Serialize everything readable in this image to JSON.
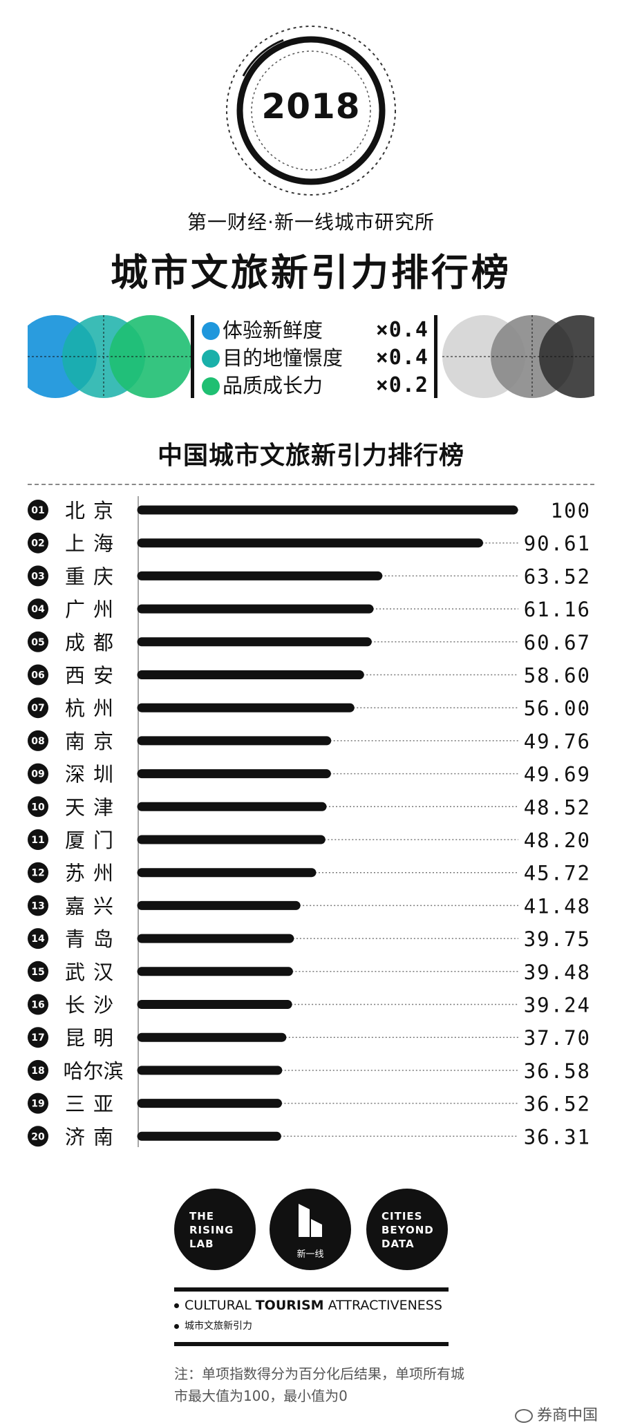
{
  "header": {
    "year": "2018",
    "subtitle": "第一财经·新一线城市研究所",
    "title": "城市文旅新引力排行榜"
  },
  "formula": {
    "items": [
      {
        "label": "体验新鲜度",
        "weight": "×0.4",
        "color": "#1f97dc"
      },
      {
        "label": "目的地憧憬度",
        "weight": "×0.4",
        "color": "#19b0a9"
      },
      {
        "label": "品质成长力",
        "weight": "×0.2",
        "color": "#1fbf72"
      }
    ]
  },
  "colors": {
    "ink": "#111111",
    "blue": "#1f97dc",
    "teal": "#19b0a9",
    "green": "#1fbf72"
  },
  "chart_data": {
    "type": "bar",
    "orientation": "horizontal",
    "title": "中国城市文旅新引力排行榜",
    "xlim": [
      0,
      100
    ],
    "grid": false,
    "ranks": [
      "01",
      "02",
      "03",
      "04",
      "05",
      "06",
      "07",
      "08",
      "09",
      "10",
      "11",
      "12",
      "13",
      "14",
      "15",
      "16",
      "17",
      "18",
      "19",
      "20"
    ],
    "categories": [
      "北京",
      "上海",
      "重庆",
      "广州",
      "成都",
      "西安",
      "杭州",
      "南京",
      "深圳",
      "天津",
      "厦门",
      "苏州",
      "嘉兴",
      "青岛",
      "武汉",
      "长沙",
      "昆明",
      "哈尔滨",
      "三亚",
      "济南"
    ],
    "values": [
      100,
      90.61,
      63.52,
      61.16,
      60.67,
      58.6,
      56.0,
      49.76,
      49.69,
      48.52,
      48.2,
      45.72,
      41.48,
      39.75,
      39.48,
      39.24,
      37.7,
      36.58,
      36.52,
      36.31
    ],
    "value_labels": [
      "100",
      "90.61",
      "63.52",
      "61.16",
      "60.67",
      "58.60",
      "56.00",
      "49.76",
      "49.69",
      "48.52",
      "48.20",
      "45.72",
      "41.48",
      "39.75",
      "39.48",
      "39.24",
      "37.70",
      "36.58",
      "36.52",
      "36.31"
    ]
  },
  "logos": {
    "rising_lab": "THE\nRISING\nLAB",
    "xinyixian": "新一线",
    "cities": "CITIES\nBEYOND\nDATA"
  },
  "tagline": {
    "en_pre": "CULTURAL ",
    "en_bold": "TOURISM",
    "en_post": " ATTRACTIVENESS",
    "cn": "城市文旅新引力"
  },
  "footnote": "注：单项指数得分为百分化后结果，单项所有城市最大值为100，最小值为0",
  "watermark": "券商中国"
}
